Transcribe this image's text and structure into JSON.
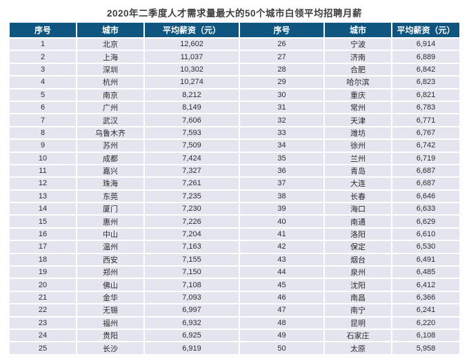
{
  "chart_data": {
    "type": "table",
    "title": "2020年二季度人才需求量最大的50个城市白领平均招聘月薪",
    "columns": [
      "序号",
      "城市",
      "平均薪资（元）",
      "序号",
      "城市",
      "平均薪资（元）"
    ],
    "rows_left": [
      {
        "rank": "1",
        "city": "北京",
        "salary": "12,602"
      },
      {
        "rank": "2",
        "city": "上海",
        "salary": "11,037"
      },
      {
        "rank": "3",
        "city": "深圳",
        "salary": "10,302"
      },
      {
        "rank": "4",
        "city": "杭州",
        "salary": "10,274"
      },
      {
        "rank": "5",
        "city": "南京",
        "salary": "8,212"
      },
      {
        "rank": "6",
        "city": "广州",
        "salary": "8,149"
      },
      {
        "rank": "7",
        "city": "武汉",
        "salary": "7,606"
      },
      {
        "rank": "8",
        "city": "乌鲁木齐",
        "salary": "7,593"
      },
      {
        "rank": "9",
        "city": "苏州",
        "salary": "7,509"
      },
      {
        "rank": "10",
        "city": "成都",
        "salary": "7,424"
      },
      {
        "rank": "11",
        "city": "嘉兴",
        "salary": "7,327"
      },
      {
        "rank": "12",
        "city": "珠海",
        "salary": "7,261"
      },
      {
        "rank": "13",
        "city": "东莞",
        "salary": "7,235"
      },
      {
        "rank": "14",
        "city": "厦门",
        "salary": "7,230"
      },
      {
        "rank": "15",
        "city": "惠州",
        "salary": "7,226"
      },
      {
        "rank": "16",
        "city": "中山",
        "salary": "7,204"
      },
      {
        "rank": "17",
        "city": "温州",
        "salary": "7,163"
      },
      {
        "rank": "18",
        "city": "西安",
        "salary": "7,155"
      },
      {
        "rank": "19",
        "city": "郑州",
        "salary": "7,150"
      },
      {
        "rank": "20",
        "city": "佛山",
        "salary": "7,108"
      },
      {
        "rank": "21",
        "city": "金华",
        "salary": "7,093"
      },
      {
        "rank": "22",
        "city": "无锡",
        "salary": "6,997"
      },
      {
        "rank": "23",
        "city": "福州",
        "salary": "6,932"
      },
      {
        "rank": "24",
        "city": "贵阳",
        "salary": "6,925"
      },
      {
        "rank": "25",
        "city": "长沙",
        "salary": "6,919"
      }
    ],
    "rows_right": [
      {
        "rank": "26",
        "city": "宁波",
        "salary": "6,914"
      },
      {
        "rank": "27",
        "city": "济南",
        "salary": "6,889"
      },
      {
        "rank": "28",
        "city": "合肥",
        "salary": "6,842"
      },
      {
        "rank": "29",
        "city": "哈尔滨",
        "salary": "6,823"
      },
      {
        "rank": "30",
        "city": "重庆",
        "salary": "6,821"
      },
      {
        "rank": "31",
        "city": "常州",
        "salary": "6,783"
      },
      {
        "rank": "32",
        "city": "天津",
        "salary": "6,771"
      },
      {
        "rank": "33",
        "city": "潍坊",
        "salary": "6,767"
      },
      {
        "rank": "34",
        "city": "徐州",
        "salary": "6,742"
      },
      {
        "rank": "35",
        "city": "兰州",
        "salary": "6,719"
      },
      {
        "rank": "36",
        "city": "青岛",
        "salary": "6,687"
      },
      {
        "rank": "37",
        "city": "大连",
        "salary": "6,687"
      },
      {
        "rank": "38",
        "city": "长春",
        "salary": "6,646"
      },
      {
        "rank": "39",
        "city": "海口",
        "salary": "6,633"
      },
      {
        "rank": "40",
        "city": "南通",
        "salary": "6,629"
      },
      {
        "rank": "41",
        "city": "洛阳",
        "salary": "6,610"
      },
      {
        "rank": "42",
        "city": "保定",
        "salary": "6,530"
      },
      {
        "rank": "43",
        "city": "烟台",
        "salary": "6,491"
      },
      {
        "rank": "44",
        "city": "泉州",
        "salary": "6,485"
      },
      {
        "rank": "45",
        "city": "沈阳",
        "salary": "6,412"
      },
      {
        "rank": "46",
        "city": "南昌",
        "salary": "6,366"
      },
      {
        "rank": "47",
        "city": "南宁",
        "salary": "6,241"
      },
      {
        "rank": "48",
        "city": "昆明",
        "salary": "6,220"
      },
      {
        "rank": "49",
        "city": "石家庄",
        "salary": "6,108"
      },
      {
        "rank": "50",
        "city": "太原",
        "salary": "5,958"
      }
    ]
  },
  "colors": {
    "header_bg": "#0E5680",
    "header_text": "#FFFFFF",
    "row_bg": "#E5E5F0",
    "title_text": "#3D3D3D"
  }
}
